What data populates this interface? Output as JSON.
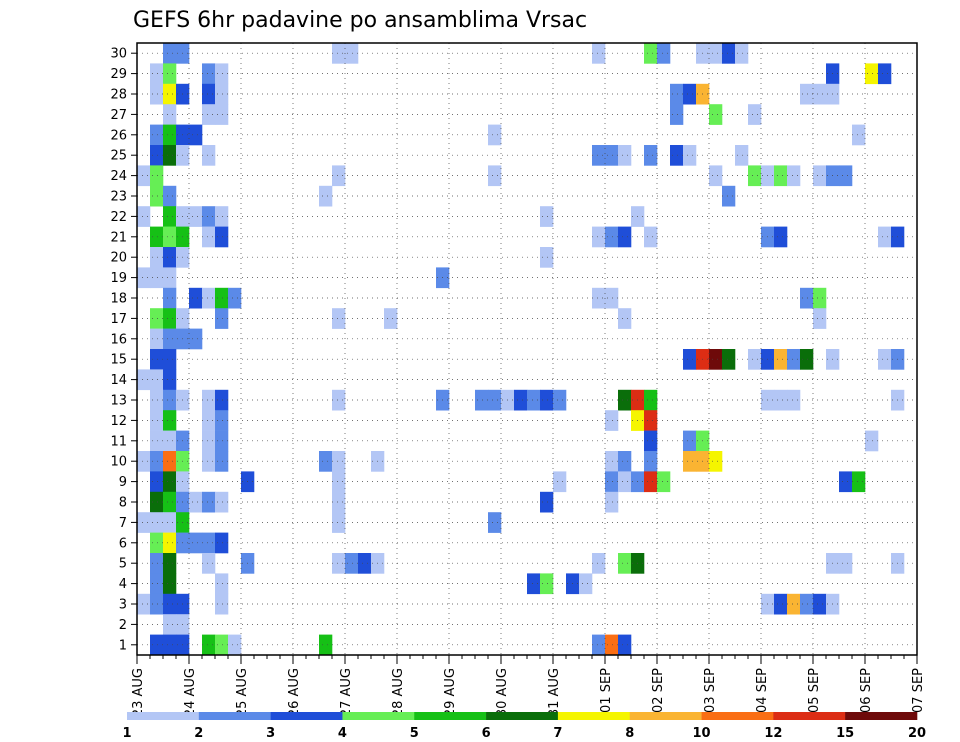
{
  "chart_data": {
    "type": "heatmap",
    "title": "GEFS 6hr padavine po ansamblima Vrsac",
    "xlabel": "",
    "ylabel": "",
    "x_tick_labels": [
      "23 AUG",
      "24 AUG",
      "25 AUG",
      "26 AUG",
      "27 AUG",
      "28 AUG",
      "29 AUG",
      "30 AUG",
      "31 AUG",
      "01 SEP",
      "02 SEP",
      "03 SEP",
      "04 SEP",
      "05 SEP",
      "06 SEP",
      "07 SEP"
    ],
    "y_tick_labels": [
      "1",
      "2",
      "3",
      "4",
      "5",
      "6",
      "7",
      "8",
      "9",
      "10",
      "11",
      "12",
      "13",
      "14",
      "15",
      "16",
      "17",
      "18",
      "19",
      "20",
      "21",
      "22",
      "23",
      "24",
      "25",
      "26",
      "27",
      "28",
      "29",
      "30"
    ],
    "x_range": [
      0,
      60
    ],
    "y_range": [
      0.5,
      30.5
    ],
    "x_unit": "6-hour steps from 23 AUG 00Z",
    "grid": true,
    "colorbar": {
      "position": "bottom",
      "tick_labels": [
        "1",
        "2",
        "3",
        "4",
        "5",
        "6",
        "7",
        "8",
        "10",
        "12",
        "15",
        "20"
      ],
      "colors": [
        "#b3c6f5",
        "#5b8ae8",
        "#1f4ed8",
        "#66ee55",
        "#16c016",
        "#0a6e0a",
        "#f5f500",
        "#fab432",
        "#fa6e14",
        "#dc2d14",
        "#6e0a0a"
      ]
    },
    "rows": [
      {
        "member": 30,
        "cells": [
          [
            2,
            2
          ],
          [
            3,
            2
          ],
          [
            15,
            1
          ],
          [
            16,
            1
          ],
          [
            35,
            1
          ],
          [
            39,
            4
          ],
          [
            40,
            2
          ],
          [
            43,
            1
          ],
          [
            44,
            1
          ],
          [
            45,
            3
          ],
          [
            46,
            1
          ]
        ]
      },
      {
        "member": 29,
        "cells": [
          [
            1,
            1
          ],
          [
            2,
            4
          ],
          [
            5,
            2
          ],
          [
            6,
            1
          ],
          [
            53,
            3
          ],
          [
            56,
            7
          ],
          [
            57,
            3
          ]
        ]
      },
      {
        "member": 28,
        "cells": [
          [
            1,
            1
          ],
          [
            2,
            7
          ],
          [
            3,
            3
          ],
          [
            5,
            3
          ],
          [
            6,
            1
          ],
          [
            41,
            2
          ],
          [
            42,
            3
          ],
          [
            43,
            8
          ],
          [
            51,
            1
          ],
          [
            52,
            1
          ],
          [
            53,
            1
          ]
        ]
      },
      {
        "member": 27,
        "cells": [
          [
            2,
            1
          ],
          [
            5,
            1
          ],
          [
            6,
            1
          ],
          [
            41,
            2
          ],
          [
            44,
            4
          ],
          [
            47,
            1
          ]
        ]
      },
      {
        "member": 26,
        "cells": [
          [
            1,
            2
          ],
          [
            2,
            5
          ],
          [
            3,
            3
          ],
          [
            4,
            3
          ],
          [
            27,
            1
          ],
          [
            55,
            1
          ]
        ]
      },
      {
        "member": 25,
        "cells": [
          [
            1,
            3
          ],
          [
            2,
            6
          ],
          [
            3,
            1
          ],
          [
            5,
            1
          ],
          [
            35,
            2
          ],
          [
            36,
            2
          ],
          [
            37,
            1
          ],
          [
            39,
            2
          ],
          [
            41,
            3
          ],
          [
            42,
            1
          ],
          [
            46,
            1
          ]
        ]
      },
      {
        "member": 24,
        "cells": [
          [
            0,
            1
          ],
          [
            1,
            4
          ],
          [
            15,
            1
          ],
          [
            27,
            1
          ],
          [
            44,
            1
          ],
          [
            47,
            4
          ],
          [
            48,
            1
          ],
          [
            49,
            4
          ],
          [
            50,
            1
          ],
          [
            52,
            1
          ],
          [
            53,
            2
          ],
          [
            54,
            2
          ]
        ]
      },
      {
        "member": 23,
        "cells": [
          [
            1,
            4
          ],
          [
            2,
            2
          ],
          [
            14,
            1
          ],
          [
            45,
            2
          ]
        ]
      },
      {
        "member": 22,
        "cells": [
          [
            0,
            1
          ],
          [
            2,
            5
          ],
          [
            3,
            1
          ],
          [
            4,
            1
          ],
          [
            5,
            2
          ],
          [
            6,
            1
          ],
          [
            31,
            1
          ],
          [
            38,
            1
          ]
        ]
      },
      {
        "member": 21,
        "cells": [
          [
            1,
            5
          ],
          [
            2,
            4
          ],
          [
            3,
            5
          ],
          [
            5,
            1
          ],
          [
            6,
            3
          ],
          [
            35,
            1
          ],
          [
            36,
            2
          ],
          [
            37,
            3
          ],
          [
            39,
            1
          ],
          [
            48,
            2
          ],
          [
            49,
            3
          ],
          [
            57,
            1
          ],
          [
            58,
            3
          ]
        ]
      },
      {
        "member": 20,
        "cells": [
          [
            1,
            1
          ],
          [
            2,
            3
          ],
          [
            3,
            1
          ],
          [
            31,
            1
          ]
        ]
      },
      {
        "member": 19,
        "cells": [
          [
            0,
            1
          ],
          [
            1,
            1
          ],
          [
            2,
            1
          ],
          [
            23,
            2
          ]
        ]
      },
      {
        "member": 18,
        "cells": [
          [
            2,
            2
          ],
          [
            4,
            3
          ],
          [
            5,
            1
          ],
          [
            6,
            5
          ],
          [
            7,
            2
          ],
          [
            35,
            1
          ],
          [
            36,
            1
          ],
          [
            51,
            2
          ],
          [
            52,
            4
          ]
        ]
      },
      {
        "member": 17,
        "cells": [
          [
            1,
            4
          ],
          [
            2,
            5
          ],
          [
            3,
            1
          ],
          [
            6,
            2
          ],
          [
            15,
            1
          ],
          [
            19,
            1
          ],
          [
            37,
            1
          ],
          [
            52,
            1
          ]
        ]
      },
      {
        "member": 16,
        "cells": [
          [
            1,
            1
          ],
          [
            2,
            2
          ],
          [
            3,
            2
          ],
          [
            4,
            2
          ]
        ]
      },
      {
        "member": 15,
        "cells": [
          [
            1,
            3
          ],
          [
            2,
            3
          ],
          [
            42,
            3
          ],
          [
            43,
            10
          ],
          [
            44,
            11
          ],
          [
            45,
            6
          ],
          [
            47,
            1
          ],
          [
            48,
            3
          ],
          [
            49,
            8
          ],
          [
            50,
            2
          ],
          [
            51,
            6
          ],
          [
            53,
            1
          ],
          [
            57,
            1
          ],
          [
            58,
            2
          ]
        ]
      },
      {
        "member": 14,
        "cells": [
          [
            0,
            1
          ],
          [
            1,
            1
          ],
          [
            2,
            3
          ]
        ]
      },
      {
        "member": 13,
        "cells": [
          [
            1,
            1
          ],
          [
            2,
            2
          ],
          [
            3,
            1
          ],
          [
            5,
            1
          ],
          [
            6,
            3
          ],
          [
            15,
            1
          ],
          [
            23,
            2
          ],
          [
            26,
            2
          ],
          [
            27,
            2
          ],
          [
            28,
            1
          ],
          [
            29,
            3
          ],
          [
            30,
            2
          ],
          [
            31,
            3
          ],
          [
            32,
            2
          ],
          [
            37,
            6
          ],
          [
            38,
            10
          ],
          [
            39,
            5
          ],
          [
            48,
            1
          ],
          [
            49,
            1
          ],
          [
            50,
            1
          ],
          [
            58,
            1
          ]
        ]
      },
      {
        "member": 12,
        "cells": [
          [
            1,
            1
          ],
          [
            2,
            5
          ],
          [
            5,
            1
          ],
          [
            6,
            2
          ],
          [
            36,
            1
          ],
          [
            38,
            7
          ],
          [
            39,
            10
          ]
        ]
      },
      {
        "member": 11,
        "cells": [
          [
            1,
            1
          ],
          [
            2,
            1
          ],
          [
            3,
            2
          ],
          [
            5,
            1
          ],
          [
            6,
            2
          ],
          [
            39,
            3
          ],
          [
            42,
            2
          ],
          [
            43,
            4
          ],
          [
            56,
            1
          ]
        ]
      },
      {
        "member": 10,
        "cells": [
          [
            0,
            1
          ],
          [
            1,
            2
          ],
          [
            2,
            9
          ],
          [
            3,
            4
          ],
          [
            5,
            1
          ],
          [
            6,
            2
          ],
          [
            14,
            2
          ],
          [
            15,
            1
          ],
          [
            18,
            1
          ],
          [
            36,
            1
          ],
          [
            37,
            2
          ],
          [
            39,
            2
          ],
          [
            42,
            8
          ],
          [
            43,
            8
          ],
          [
            44,
            7
          ]
        ]
      },
      {
        "member": 9,
        "cells": [
          [
            1,
            3
          ],
          [
            2,
            6
          ],
          [
            3,
            1
          ],
          [
            8,
            3
          ],
          [
            15,
            1
          ],
          [
            32,
            1
          ],
          [
            36,
            2
          ],
          [
            37,
            1
          ],
          [
            38,
            2
          ],
          [
            39,
            10
          ],
          [
            40,
            4
          ],
          [
            54,
            3
          ],
          [
            55,
            5
          ]
        ]
      },
      {
        "member": 8,
        "cells": [
          [
            1,
            6
          ],
          [
            2,
            5
          ],
          [
            3,
            2
          ],
          [
            4,
            1
          ],
          [
            5,
            2
          ],
          [
            6,
            1
          ],
          [
            15,
            1
          ],
          [
            31,
            3
          ],
          [
            36,
            1
          ]
        ]
      },
      {
        "member": 7,
        "cells": [
          [
            0,
            1
          ],
          [
            1,
            1
          ],
          [
            2,
            1
          ],
          [
            3,
            5
          ],
          [
            15,
            1
          ],
          [
            27,
            2
          ]
        ]
      },
      {
        "member": 6,
        "cells": [
          [
            1,
            4
          ],
          [
            2,
            7
          ],
          [
            3,
            2
          ],
          [
            4,
            2
          ],
          [
            5,
            2
          ],
          [
            6,
            3
          ]
        ]
      },
      {
        "member": 5,
        "cells": [
          [
            1,
            2
          ],
          [
            2,
            6
          ],
          [
            5,
            1
          ],
          [
            8,
            2
          ],
          [
            15,
            1
          ],
          [
            16,
            2
          ],
          [
            17,
            3
          ],
          [
            18,
            1
          ],
          [
            35,
            1
          ],
          [
            37,
            4
          ],
          [
            38,
            6
          ],
          [
            53,
            1
          ],
          [
            54,
            1
          ],
          [
            58,
            1
          ]
        ]
      },
      {
        "member": 4,
        "cells": [
          [
            1,
            2
          ],
          [
            2,
            6
          ],
          [
            6,
            1
          ],
          [
            30,
            3
          ],
          [
            31,
            4
          ],
          [
            33,
            3
          ],
          [
            34,
            1
          ]
        ]
      },
      {
        "member": 3,
        "cells": [
          [
            0,
            1
          ],
          [
            1,
            2
          ],
          [
            2,
            3
          ],
          [
            3,
            3
          ],
          [
            6,
            1
          ],
          [
            48,
            1
          ],
          [
            49,
            3
          ],
          [
            50,
            8
          ],
          [
            51,
            2
          ],
          [
            52,
            3
          ],
          [
            53,
            1
          ]
        ]
      },
      {
        "member": 2,
        "cells": [
          [
            2,
            1
          ],
          [
            3,
            1
          ]
        ]
      },
      {
        "member": 1,
        "cells": [
          [
            1,
            3
          ],
          [
            2,
            3
          ],
          [
            3,
            3
          ],
          [
            5,
            5
          ],
          [
            6,
            4
          ],
          [
            7,
            1
          ],
          [
            14,
            5
          ],
          [
            35,
            2
          ],
          [
            36,
            9
          ],
          [
            37,
            3
          ]
        ]
      }
    ]
  }
}
